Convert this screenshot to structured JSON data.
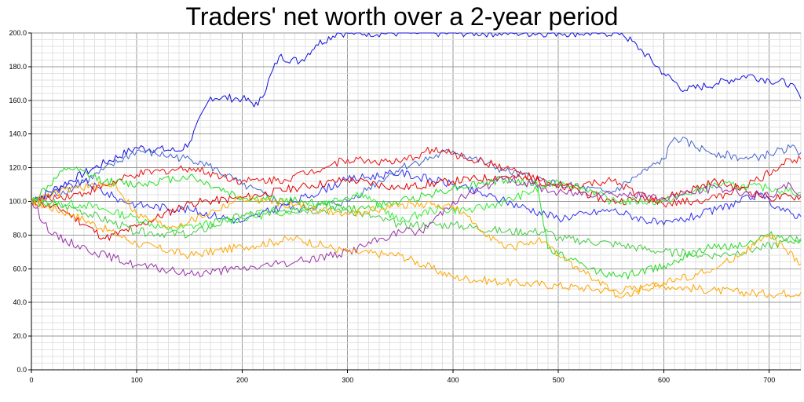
{
  "chart_data": {
    "type": "line",
    "title": "Traders' net worth over a 2-year period",
    "xlabel": "",
    "ylabel": "",
    "xlim": [
      0,
      730
    ],
    "ylim": [
      0,
      200
    ],
    "grid": true,
    "x_ticks": [
      0,
      100,
      200,
      300,
      400,
      500,
      600,
      700
    ],
    "y_ticks": [
      "0.0",
      "20.0",
      "40.0",
      "60.0",
      "80.0",
      "100.0",
      "120.0",
      "140.0",
      "160.0",
      "180.0",
      "200.0"
    ],
    "series": [
      {
        "color": "#1111dd",
        "x": [
          0,
          60,
          100,
          140,
          150,
          170,
          200,
          215,
          235,
          255,
          270,
          290,
          300,
          350,
          400,
          450,
          500,
          560,
          580,
          600,
          620,
          650,
          680,
          700,
          720,
          730
        ],
        "y": [
          100,
          120,
          132,
          130,
          135,
          162,
          161,
          157,
          186,
          183,
          193,
          200,
          200,
          200,
          200,
          200,
          200,
          200,
          189,
          176,
          166,
          170,
          175,
          172,
          170,
          161
        ]
      },
      {
        "color": "#4466cc",
        "x": [
          0,
          40,
          100,
          160,
          200,
          250,
          300,
          350,
          400,
          450,
          500,
          550,
          600,
          610,
          640,
          680,
          700,
          720,
          730
        ],
        "y": [
          100,
          108,
          130,
          124,
          110,
          95,
          100,
          120,
          130,
          118,
          110,
          105,
          125,
          138,
          130,
          125,
          128,
          132,
          129
        ]
      },
      {
        "color": "#3333ee",
        "x": [
          0,
          50,
          80,
          100,
          150,
          200,
          250,
          300,
          350,
          400,
          450,
          500,
          550,
          600,
          650,
          690,
          715,
          730
        ],
        "y": [
          100,
          112,
          102,
          98,
          95,
          88,
          100,
          113,
          117,
          110,
          100,
          90,
          95,
          86,
          95,
          104,
          94,
          91
        ]
      },
      {
        "color": "#ee1111",
        "x": [
          0,
          50,
          100,
          150,
          200,
          240,
          300,
          350,
          380,
          400,
          450,
          500,
          550,
          600,
          650,
          690,
          720,
          730
        ],
        "y": [
          100,
          105,
          116,
          120,
          112,
          113,
          125,
          123,
          131,
          128,
          120,
          108,
          112,
          98,
          102,
          113,
          125,
          125
        ]
      },
      {
        "color": "#dd0000",
        "x": [
          0,
          30,
          70,
          100,
          150,
          200,
          250,
          300,
          350,
          400,
          450,
          500,
          550,
          600,
          650,
          700,
          730
        ],
        "y": [
          100,
          95,
          78,
          85,
          99,
          102,
          108,
          113,
          108,
          112,
          115,
          110,
          100,
          102,
          112,
          102,
          103
        ]
      },
      {
        "color": "#22dd22",
        "x": [
          0,
          35,
          70,
          100,
          150,
          200,
          260,
          310,
          350,
          400,
          450,
          480,
          490,
          530,
          560,
          600,
          640,
          680,
          700,
          730
        ],
        "y": [
          100,
          120,
          112,
          110,
          115,
          102,
          100,
          95,
          100,
          108,
          113,
          110,
          72,
          60,
          55,
          62,
          72,
          75,
          80,
          77
        ]
      },
      {
        "color": "#33ee33",
        "x": [
          0,
          50,
          100,
          130,
          200,
          250,
          313,
          350,
          380,
          420,
          450,
          500,
          530,
          550,
          600,
          650,
          700,
          730
        ],
        "y": [
          100,
          98,
          90,
          83,
          90,
          95,
          105,
          88,
          95,
          95,
          100,
          112,
          107,
          100,
          100,
          110,
          108,
          105
        ]
      },
      {
        "color": "#44cc44",
        "x": [
          0,
          40,
          100,
          150,
          200,
          240,
          300,
          350,
          400,
          450,
          490,
          500,
          550,
          600,
          650,
          690,
          730
        ],
        "y": [
          100,
          96,
          82,
          80,
          92,
          95,
          95,
          86,
          86,
          82,
          82,
          78,
          75,
          70,
          68,
          72,
          78
        ]
      },
      {
        "color": "#9933aa",
        "x": [
          0,
          20,
          60,
          100,
          150,
          200,
          250,
          300,
          350,
          370,
          400,
          450,
          500,
          550,
          600,
          650,
          700,
          720,
          730
        ],
        "y": [
          100,
          80,
          70,
          62,
          57,
          60,
          64,
          70,
          82,
          82,
          100,
          114,
          105,
          105,
          102,
          108,
          103,
          110,
          104
        ]
      },
      {
        "color": "#ffaa00",
        "x": [
          0,
          40,
          80,
          100,
          130,
          150,
          200,
          250,
          300,
          350,
          380,
          400,
          450,
          480,
          500,
          560,
          600,
          650,
          700,
          730
        ],
        "y": [
          100,
          108,
          110,
          92,
          85,
          88,
          102,
          98,
          92,
          98,
          98,
          97,
          72,
          77,
          68,
          43,
          52,
          60,
          80,
          63
        ]
      },
      {
        "color": "#ffa500",
        "x": [
          0,
          40,
          100,
          150,
          200,
          250,
          300,
          350,
          400,
          450,
          500,
          550,
          600,
          650,
          700,
          730
        ],
        "y": [
          100,
          92,
          75,
          68,
          73,
          78,
          70,
          68,
          55,
          52,
          50,
          47,
          50,
          47,
          45,
          46
        ]
      }
    ]
  }
}
